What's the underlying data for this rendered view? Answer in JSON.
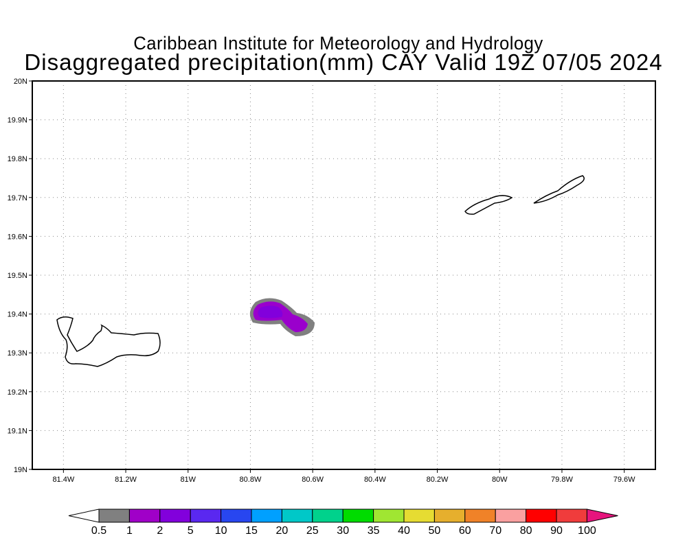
{
  "title": {
    "line1": "Caribbean Institute for Meteorology and Hydrology",
    "line2": "Disaggregated precipitation(mm) CAY Valid 19Z 07/05 2024"
  },
  "map": {
    "lon_range": [
      -81.5,
      -79.5
    ],
    "lat_range": [
      19.0,
      20.0
    ],
    "lon_ticks": [
      {
        "v": -81.4,
        "label": "81.4W"
      },
      {
        "v": -81.2,
        "label": "81.2W"
      },
      {
        "v": -81.0,
        "label": "81W"
      },
      {
        "v": -80.8,
        "label": "80.8W"
      },
      {
        "v": -80.6,
        "label": "80.6W"
      },
      {
        "v": -80.4,
        "label": "80.4W"
      },
      {
        "v": -80.2,
        "label": "80.2W"
      },
      {
        "v": -80.0,
        "label": "80W"
      },
      {
        "v": -79.8,
        "label": "79.8W"
      },
      {
        "v": -79.6,
        "label": "79.6W"
      }
    ],
    "lat_ticks": [
      {
        "v": 19.0,
        "label": "19N"
      },
      {
        "v": 19.1,
        "label": "19.1N"
      },
      {
        "v": 19.2,
        "label": "19.2N"
      },
      {
        "v": 19.3,
        "label": "19.3N"
      },
      {
        "v": 19.4,
        "label": "19.4N"
      },
      {
        "v": 19.5,
        "label": "19.5N"
      },
      {
        "v": 19.6,
        "label": "19.6N"
      },
      {
        "v": 19.7,
        "label": "19.7N"
      },
      {
        "v": 19.8,
        "label": "19.8N"
      },
      {
        "v": 19.9,
        "label": "19.9N"
      },
      {
        "v": 20.0,
        "label": "20N"
      }
    ]
  },
  "colorbar": {
    "labels": [
      "0.5",
      "1",
      "2",
      "5",
      "10",
      "15",
      "20",
      "25",
      "30",
      "35",
      "40",
      "50",
      "60",
      "70",
      "80",
      "90",
      "100"
    ],
    "colors": [
      "#808080",
      "#a000c8",
      "#8200dc",
      "#5a28f0",
      "#2846f0",
      "#00a0ff",
      "#00c8c8",
      "#00d28c",
      "#00dc00",
      "#a0e632",
      "#e6dc32",
      "#e6af2d",
      "#f08228",
      "#faa0a0",
      "#ff0000",
      "#f03c3c",
      "#e6147d"
    ],
    "under_color": "#ffffff"
  }
}
